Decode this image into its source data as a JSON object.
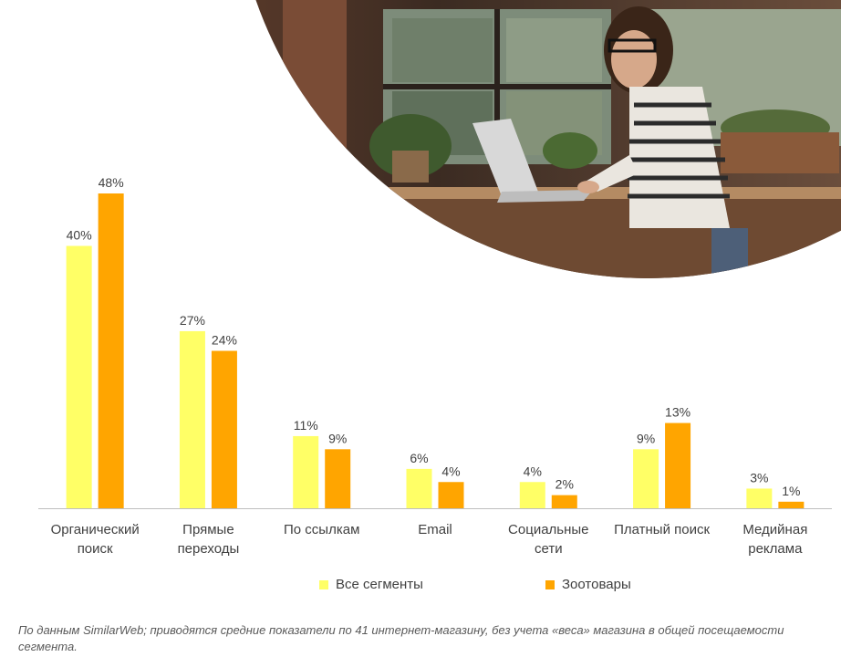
{
  "chart_data": {
    "type": "bar",
    "categories": [
      "Органический\nпоиск",
      "Прямые\nпереходы",
      "По ссылкам",
      "Email",
      "Социальные\nсети",
      "Платный поиск",
      "Медийная\nреклама"
    ],
    "series": [
      {
        "name": "Все сегменты",
        "values": [
          40,
          27,
          11,
          6,
          4,
          9,
          3
        ],
        "labels": [
          "40%",
          "27%",
          "11%",
          "6%",
          "4%",
          "9%",
          "3%"
        ],
        "color": "#FFFF66"
      },
      {
        "name": "Зоотовары",
        "values": [
          48,
          24,
          9,
          4,
          2,
          13,
          1
        ],
        "labels": [
          "48%",
          "24%",
          "9%",
          "4%",
          "2%",
          "13%",
          "1%"
        ],
        "color": "#FFA500"
      }
    ],
    "ylim": [
      0,
      48
    ],
    "grid": false,
    "legend": "bottom-center"
  },
  "colors": {
    "yellow": "#FFFF66",
    "orange": "#FFA500",
    "axis": "#BFBFBF",
    "text": "#404040"
  },
  "footnote": "По данным SimilarWeb; приводятся средние показатели по 41 интернет-магазину, без учета «веса» магазина в общей посещаемости сегмента.",
  "decor": {
    "photo": "woman-with-laptop-photo"
  }
}
